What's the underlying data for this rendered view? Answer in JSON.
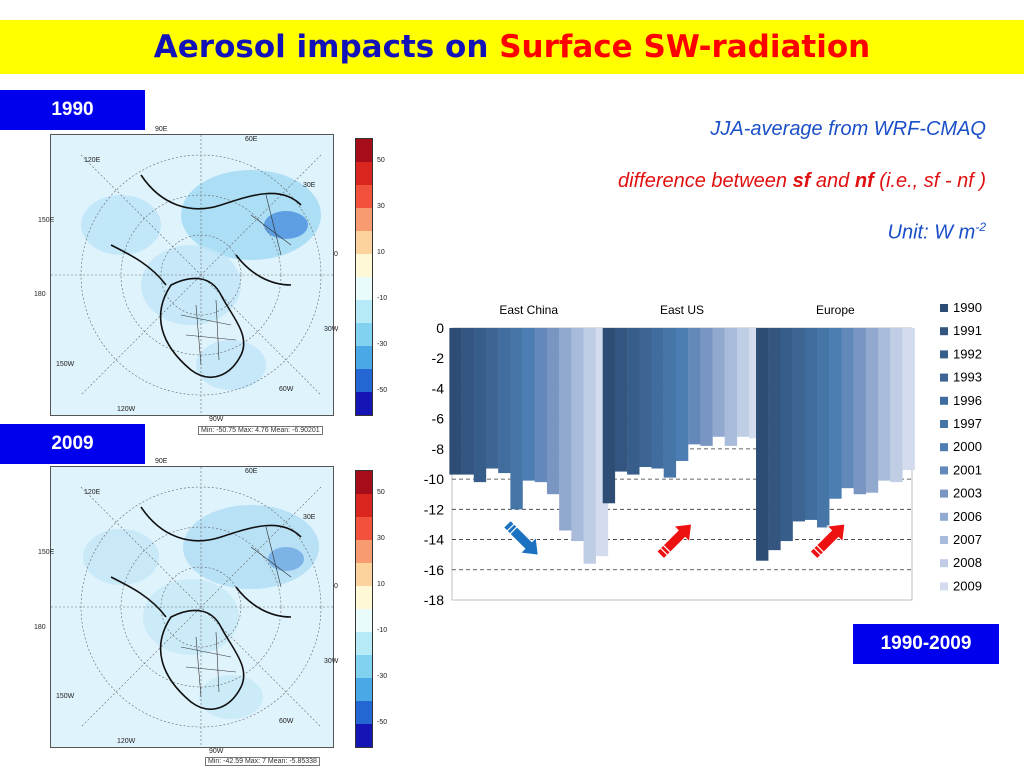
{
  "title": {
    "part1": "Aerosol impacts on ",
    "part2": "Surface SW-radiation"
  },
  "badges": {
    "top": "1990",
    "bottom": "2009",
    "period": "1990-2009"
  },
  "notes": {
    "line1": "JJA-average from WRF-CMAQ",
    "line2_pre": "difference between ",
    "line2_sf": "sf",
    "line2_mid": " and ",
    "line2_nf": "nf",
    "line2_post": " (i.e., sf - nf )",
    "line3": "Unit: W m",
    "line3_sup": "-2"
  },
  "maps": [
    {
      "caption": "Min: -50.75 Max: 4.76 Mean: -6.90201",
      "labels": {
        "top": "90E",
        "tr": "60E",
        "tl": "120E",
        "r1": "30E",
        "l1": "150E",
        "r0": "0",
        "l0": "180",
        "r2": "30W",
        "l2": "150W",
        "br": "60W",
        "bl": "120W",
        "bot": "90W"
      }
    },
    {
      "caption": "Min: -42.59 Max: 7 Mean: -5.85338",
      "labels": {
        "top": "90E",
        "tr": "60E",
        "tl": "120E",
        "r1": "30E",
        "l1": "150E",
        "r0": "0",
        "l0": "180",
        "r2": "30W",
        "l2": "150W",
        "br": "60W",
        "bl": "120W",
        "bot": "90W"
      }
    }
  ],
  "colorbar": {
    "ticks": [
      "50",
      "30",
      "10",
      "-10",
      "-30",
      "-50"
    ],
    "colors": [
      "#a50d1a",
      "#d9251e",
      "#f2513b",
      "#f99b70",
      "#fcd39c",
      "#fff8d7",
      "#e9fbfb",
      "#b7eaf7",
      "#81d2f1",
      "#4aa8e6",
      "#2467d3",
      "#1514b5"
    ]
  },
  "chart_data": {
    "type": "bar",
    "title": "",
    "xlabel": "",
    "ylabel": "",
    "ylim": [
      -18,
      0
    ],
    "yticks": [
      "0",
      "-2",
      "-4",
      "-6",
      "-8",
      "-10",
      "-12",
      "-14",
      "-16",
      "-18"
    ],
    "categories": [
      "East China",
      "East US",
      "Europe"
    ],
    "series": [
      {
        "name": "1990",
        "color": "#2e4d75",
        "values": [
          -9.7,
          -11.6,
          -15.4
        ]
      },
      {
        "name": "1991",
        "color": "#33557f",
        "values": [
          -9.7,
          -9.5,
          -14.7
        ]
      },
      {
        "name": "1992",
        "color": "#375d8a",
        "values": [
          -10.2,
          -9.7,
          -14.1
        ]
      },
      {
        "name": "1993",
        "color": "#3c6594",
        "values": [
          -9.3,
          -9.2,
          -12.8
        ]
      },
      {
        "name": "1996",
        "color": "#416d9e",
        "values": [
          -9.6,
          -9.3,
          -12.7
        ]
      },
      {
        "name": "1997",
        "color": "#4675a8",
        "values": [
          -12.0,
          -9.9,
          -13.2
        ]
      },
      {
        "name": "2000",
        "color": "#4d7eb3",
        "values": [
          -10.1,
          -8.8,
          -11.3
        ]
      },
      {
        "name": "2001",
        "color": "#6289b9",
        "values": [
          -10.2,
          -7.7,
          -10.6
        ]
      },
      {
        "name": "2003",
        "color": "#7996c2",
        "values": [
          -11.0,
          -7.8,
          -11.0
        ]
      },
      {
        "name": "2006",
        "color": "#91a8cf",
        "values": [
          -13.4,
          -7.2,
          -10.9
        ]
      },
      {
        "name": "2007",
        "color": "#a8bbdb",
        "values": [
          -14.1,
          -7.8,
          -10.1
        ]
      },
      {
        "name": "2008",
        "color": "#bfcde5",
        "values": [
          -15.6,
          -7.2,
          -10.2
        ]
      },
      {
        "name": "2009",
        "color": "#d3dcee",
        "values": [
          -15.1,
          -7.3,
          -9.4
        ]
      }
    ],
    "gridlines": "dashed horizontal",
    "legend_position": "right",
    "arrows": [
      {
        "category": "East China",
        "direction": "down",
        "color": "#1b72c0"
      },
      {
        "category": "East US",
        "direction": "up",
        "color": "#ee1111"
      },
      {
        "category": "Europe",
        "direction": "up",
        "color": "#ee1111"
      }
    ]
  }
}
